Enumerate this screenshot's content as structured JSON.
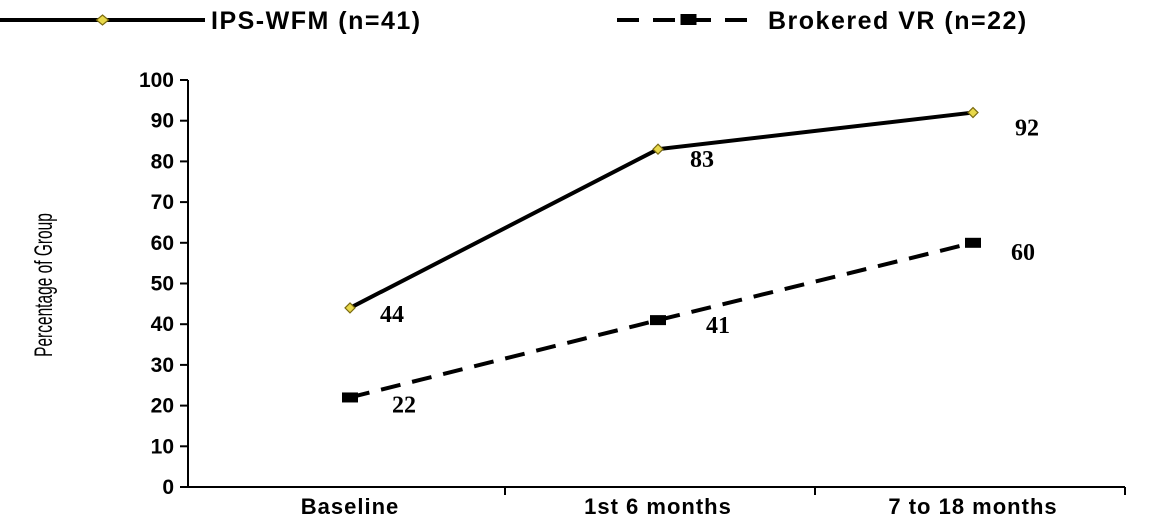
{
  "chart_data": {
    "type": "line",
    "categories": [
      "Baseline",
      "1st 6 months",
      "7 to 18 months"
    ],
    "series": [
      {
        "name": "IPS-WFM (n=41)",
        "values": [
          44,
          83,
          92
        ],
        "line_style": "solid",
        "marker": "diamond",
        "color": "#000000",
        "marker_color": "#e8d84a"
      },
      {
        "name": "Brokered VR (n=22)",
        "values": [
          22,
          41,
          60
        ],
        "line_style": "dashed",
        "marker": "square",
        "color": "#000000"
      }
    ],
    "ylabel": "Percentage of Group",
    "xlabel": "",
    "ylim": [
      0,
      100
    ],
    "yticks": [
      "0",
      "10",
      "20",
      "30",
      "40",
      "50",
      "60",
      "70",
      "80",
      "90",
      "100"
    ],
    "data_labels": true,
    "grid": false,
    "legend_position": "top"
  }
}
